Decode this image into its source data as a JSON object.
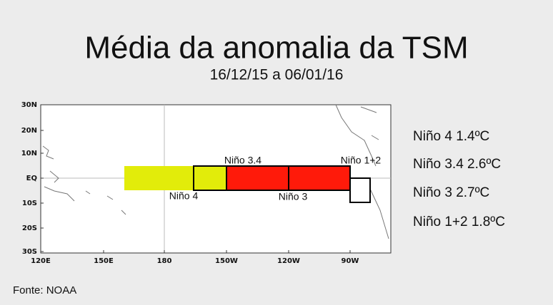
{
  "header": {
    "title": "Média da anomalia da TSM",
    "subtitle": "16/12/15 a 06/01/16"
  },
  "map": {
    "lat_labels": [
      "30N",
      "20N",
      "10N",
      "EQ",
      "10S",
      "20S",
      "30S"
    ],
    "lon_labels": [
      "120E",
      "150E",
      "180",
      "150W",
      "120W",
      "90W"
    ],
    "regions": [
      "Niño 3.4",
      "Niño 1+2",
      "Niño 4",
      "Niño 3"
    ]
  },
  "legend": [
    "Niño 4 1.4ºC",
    "Niño 3.4 2.6ºC",
    "Niño 3 2.7ºC",
    "Niño 1+2 1.8ºC"
  ],
  "source": "Fonte: NOAA"
}
